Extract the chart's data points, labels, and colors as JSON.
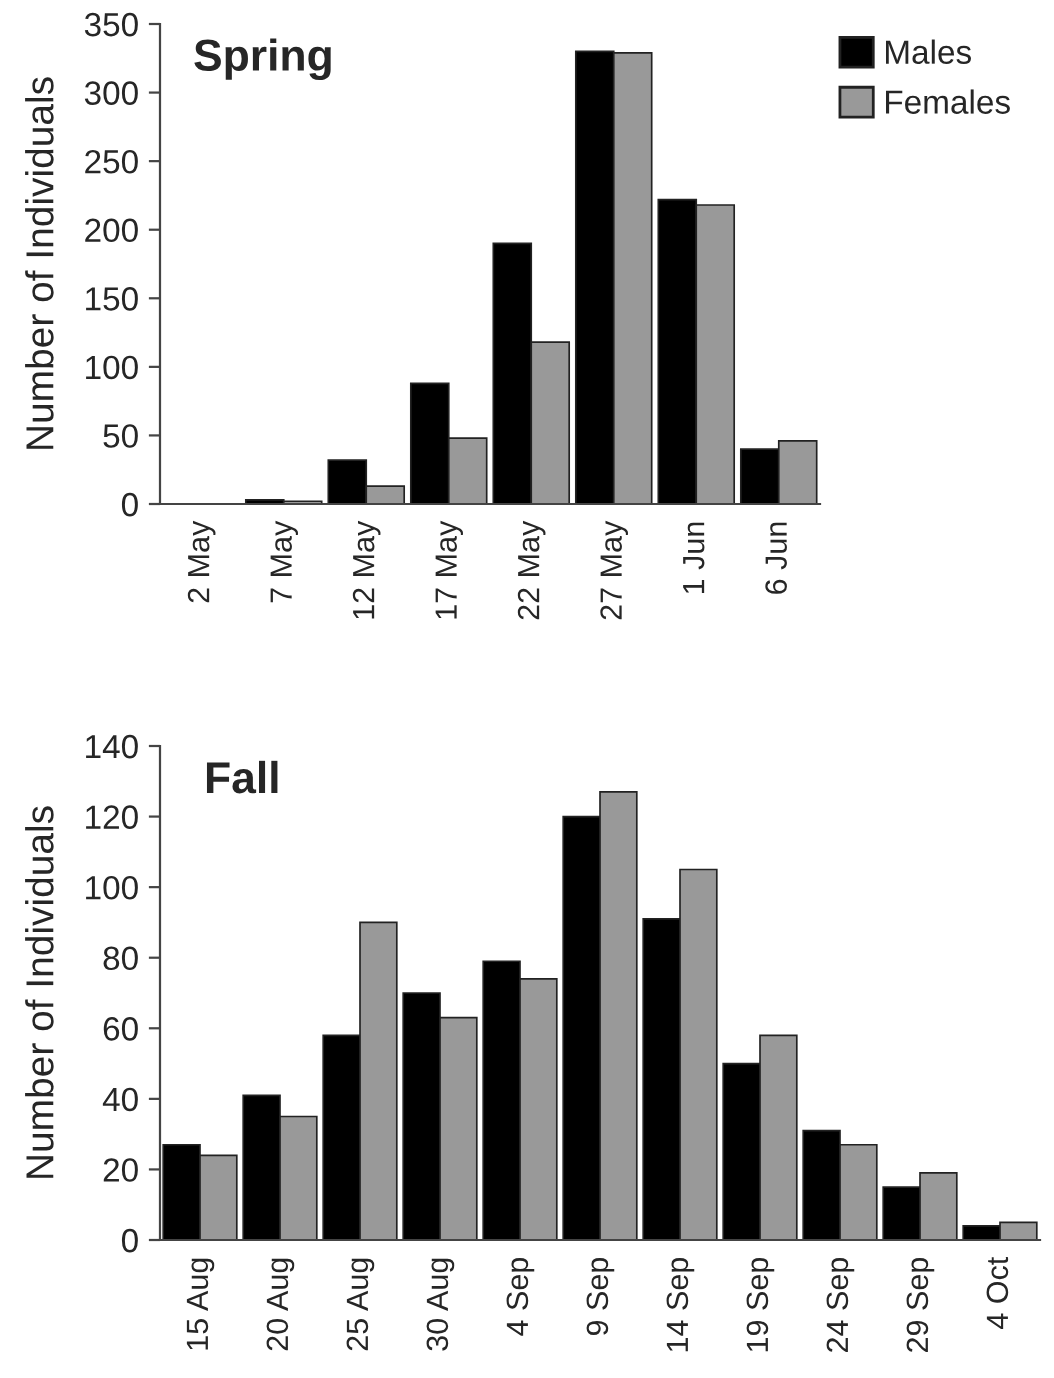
{
  "chart_data": [
    {
      "type": "bar",
      "title": "Spring",
      "ylabel": "Number of Individuals",
      "categories": [
        "2 May",
        "7 May",
        "12 May",
        "17 May",
        "22 May",
        "27 May",
        "1 Jun",
        "6 Jun"
      ],
      "series": [
        {
          "name": "Males",
          "color": "#000000",
          "values": [
            0,
            3,
            32,
            88,
            190,
            330,
            222,
            40
          ]
        },
        {
          "name": "Females",
          "color": "#999999",
          "values": [
            0,
            2,
            13,
            48,
            118,
            329,
            218,
            46
          ]
        }
      ],
      "ylim": [
        0,
        350
      ],
      "yticks": [
        0,
        50,
        100,
        150,
        200,
        250,
        300,
        350
      ],
      "grid": false,
      "legend": "top right"
    },
    {
      "type": "bar",
      "title": "Fall",
      "ylabel": "Number of Individuals",
      "categories": [
        "15 Aug",
        "20 Aug",
        "25 Aug",
        "30 Aug",
        "4 Sep",
        "9 Sep",
        "14 Sep",
        "19 Sep",
        "24 Sep",
        "29 Sep",
        "4 Oct"
      ],
      "series": [
        {
          "color": "#000000",
          "values": [
            27,
            41,
            58,
            70,
            79,
            120,
            91,
            50,
            31,
            15,
            4
          ]
        },
        {
          "color": "#999999",
          "values": [
            24,
            35,
            90,
            63,
            74,
            127,
            105,
            58,
            27,
            19,
            5
          ]
        }
      ],
      "ylim": [
        0,
        140
      ],
      "yticks": [
        0,
        20,
        40,
        60,
        80,
        100,
        120,
        140
      ],
      "grid": false
    }
  ]
}
